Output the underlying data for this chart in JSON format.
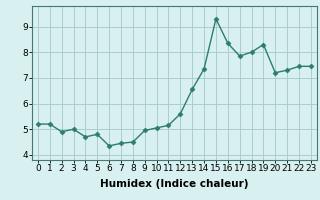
{
  "x": [
    0,
    1,
    2,
    3,
    4,
    5,
    6,
    7,
    8,
    9,
    10,
    11,
    12,
    13,
    14,
    15,
    16,
    17,
    18,
    19,
    20,
    21,
    22,
    23
  ],
  "y": [
    5.2,
    5.2,
    4.9,
    5.0,
    4.7,
    4.8,
    4.35,
    4.45,
    4.5,
    4.95,
    5.05,
    5.15,
    5.6,
    6.55,
    7.35,
    9.3,
    8.35,
    7.85,
    8.0,
    8.3,
    7.2,
    7.3,
    7.45,
    7.45
  ],
  "line_color": "#2e7d6b",
  "marker": "D",
  "markersize": 2.5,
  "linewidth": 1.0,
  "bg_color": "#d8f0f0",
  "grid_color": "#aacece",
  "xlabel": "Humidex (Indice chaleur)",
  "xlim": [
    -0.5,
    23.5
  ],
  "ylim": [
    3.8,
    9.8
  ],
  "yticks": [
    4,
    5,
    6,
    7,
    8,
    9
  ],
  "xticks": [
    0,
    1,
    2,
    3,
    4,
    5,
    6,
    7,
    8,
    9,
    10,
    11,
    12,
    13,
    14,
    15,
    16,
    17,
    18,
    19,
    20,
    21,
    22,
    23
  ],
  "xlabel_fontsize": 7.5,
  "tick_fontsize": 6.5
}
